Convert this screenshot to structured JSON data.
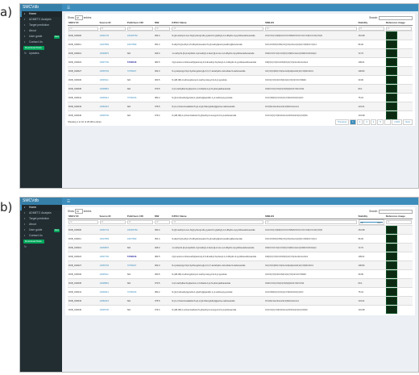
{
  "panel_labels": [
    "a)",
    "b)"
  ],
  "app_title": "SMCVdb",
  "nav": [
    {
      "label": "Home",
      "icon": "home-icon"
    },
    {
      "label": "ADMETC Analysis",
      "icon": "chart-icon"
    },
    {
      "label": "Target prediction",
      "icon": "target-icon"
    },
    {
      "label": "About",
      "icon": "info-icon"
    },
    {
      "label": "User guide",
      "icon": "book-icon",
      "badge": "New"
    },
    {
      "label": "Contact Us",
      "icon": "envelope-icon"
    }
  ],
  "download_label": "Download Data",
  "update_label": "Updates",
  "show_label": "Show",
  "entries_value": "10",
  "entries_label": "entries",
  "search_label": "Search:",
  "filter_placeholder": "All",
  "columns": [
    "SMCV ID",
    "Source ID",
    "PubChem CID",
    "MW",
    "IUPAC Name",
    "SMILES",
    "Stability",
    "Reference image"
  ],
  "rows": [
    {
      "id": "RCB_C00000",
      "src": "10092743",
      "cid": "109465782",
      "mw": "393.4",
      "iupac": "N-[(4-methyl-2-oxo-N-[(2-phenyl-2H-pyrazol-3-yl)ethyl]-1,2-dihydro-4-pyridinecarboxamide",
      "smiles": "CC1=CC(=O)N(CC2=CC=NN2C3=CC=CC=C3)C=C1C(=O)N",
      "stab": "151.98"
    },
    {
      "id": "RCB_C00011",
      "src": "10007899",
      "cid": "10007899",
      "mw": "351.4",
      "iupac": "N-allyl-5-[(3-ethyl-4,5-dihydroisoxazol-5-yl)methyl]amino)sulfonyl]benzamide",
      "smiles": "CCC1=NOC(CNS(=O)(=O)c2cccc(c2)C(=O)NCC=C)C1",
      "stab": "96.02"
    },
    {
      "id": "RCB_C00013",
      "src": "10099870",
      "cid": "N/A",
      "mw": "409.4",
      "iupac": "1-methyl-N-[3-(morpholin-4-ylmethyl)-1-benzyl]-2-oxo-1,2-dihydro-3-pyridinecarboxamide",
      "smiles": "CN1C=CC=C(C1=O)C(=O)NCc1cccc(CN2CCOCC2)c1",
      "stab": "72.72"
    },
    {
      "id": "RCB_C00024",
      "src": "10097700",
      "cid": "73796016",
      "mw": "382.5",
      "iupac": "2-[(2-amino-2-thioxoethyl)amino]-4,6-dimethyl-N-phenyl-1,2-dihydro-3-pyridinecarboxamide",
      "smiles": "CN(C)C(=O)C1CCN(C1)C(=O)c1cc2ccccc2o1",
      "stab": "109.01"
    },
    {
      "id": "RCB_C00027",
      "src": "10065793",
      "cid": "70795027",
      "mw": "362.3",
      "iupac": "N-cyclopropyl-N-[2-hydroxyphenyl]-2,3,4,7-tetrahydro-1H-indole-5-carboxamide",
      "smiles": "CC(=O)C(NC(=O)c1ccc2[nH]ccc2c1)C(=O)NC1CC1",
      "stab": "100.84"
    },
    {
      "id": "RCB_C00030",
      "src": "10095111",
      "cid": "N/A",
      "mw": "360.5",
      "iupac": "N-(2R,3R)-3-ethoxyphenyl-2-methyl-1H-pyrrol-3-yl-pyrazole",
      "smiles": "CCOC(=O)C1CCN(C1)C(=O)C2=CC=NN2C",
      "stab": "30.00"
    },
    {
      "id": "RCB_C00035",
      "src": "10098891",
      "cid": "N/A",
      "mw": "370.5",
      "iupac": "2-(2-methylbenzoyl)amino-1,3-thiazol-4-yl-N-phenylethanamide",
      "smiles": "CN1C=CC(=N1)C(=O)N(C)CC1=NC=CS1",
      "stab": "60.1"
    },
    {
      "id": "RCB_C00041",
      "src": "10099312",
      "cid": "70796916",
      "mw": "382.2",
      "iupac": "N-[(2,3-dimethylpyrazol-1-yl)ethyl]piperidin-1-yl-carbonyl-pyrazole",
      "smiles": "CC1=NN(C)C(=C1)C(=O)N1CCC(C1)CO",
      "stab": "75.31"
    },
    {
      "id": "RCB_C00043",
      "src": "10082015",
      "cid": "N/A",
      "mw": "375.5",
      "iupac": "N-(1,2,3-benzoxadiazol-5-yl)-2-[(2-thienyl)ethyl]glycine-carboxamide",
      "smiles": "O=C(Nc1ccc2nonc2c1)NCCc1cccs1",
      "stab": "131.01"
    },
    {
      "id": "RCB_C00046",
      "src": "10095700",
      "cid": "N/A",
      "mw": "379.4",
      "iupac": "N-(2R,3R)-1-[4-benzodioxol-5-yl]methyl-4-oxopyrrol-3-yl-carboxamide",
      "smiles": "CC1=C(C(=O)N1Cc1ccc2OCOc2c1)C(=O)NC",
      "stab": "101.98"
    }
  ],
  "info_text": "Showing 1 to 10 of 26,004 entries",
  "pager": [
    "Previous",
    "1",
    "2",
    "3",
    "4",
    "5",
    "...",
    "2,601",
    "Next"
  ],
  "stability_filter": {
    "min": "0.00",
    "max": "189.71"
  },
  "thumbnail_color": "#0c2a12",
  "accent_color": "#3c8dbc"
}
